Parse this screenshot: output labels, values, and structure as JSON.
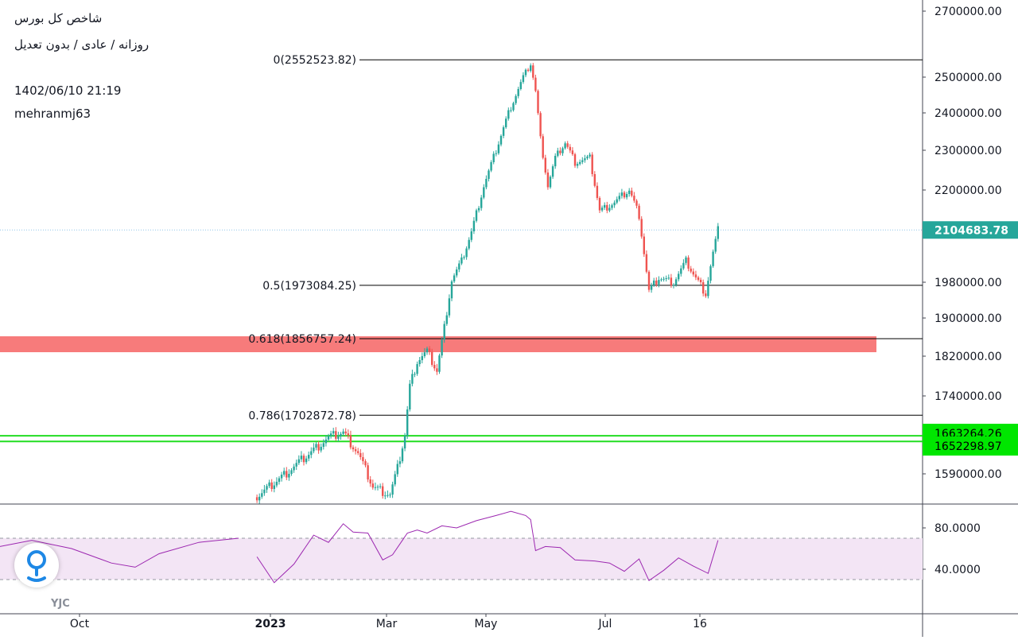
{
  "header": {
    "title": "شاخص کل بورس",
    "subtitle": "روزانه / عادی / بدون تعدیل",
    "datetime": "1402/06/10 21:19",
    "author": "mehranmj63"
  },
  "watermark": {
    "text": "YJC"
  },
  "colors": {
    "up": "#26a69a",
    "down": "#ef5350",
    "rsi_line": "#9c27b0",
    "rsi_band": "#f3e5f5",
    "resistance_zone": "#f77b7b",
    "support_lines": "#22dd22",
    "last_price_tag": "#26a69a",
    "support_tag": "#00e600"
  },
  "chart_data": [
    {
      "type": "candlestick",
      "title": "",
      "x_labels": [
        "Oct",
        "2023",
        "Mar",
        "May",
        "Jul",
        "16"
      ],
      "y_ticks": [
        "2700000.00",
        "2500000.00",
        "2400000.00",
        "2300000.00",
        "2200000.00",
        "1980000.00",
        "1900000.00",
        "1820000.00",
        "1740000.00",
        "1590000.00"
      ],
      "last_price": "2104683.78",
      "fibonacci": [
        {
          "label": "0(2552523.82)",
          "value": 2552523.82
        },
        {
          "label": "0.5(1973084.25)",
          "value": 1973084.25
        },
        {
          "label": "0.618(1856757.24)",
          "value": 1856757.24
        },
        {
          "label": "0.786(1702872.78)",
          "value": 1702872.78
        }
      ],
      "resistance_zone": [
        1830000,
        1856757.24
      ],
      "support_levels": [
        {
          "label": "1663264.26",
          "value": 1663264.26
        },
        {
          "label": "1652298.97",
          "value": 1652298.97
        }
      ],
      "approx_close_path": [
        [
          1,
          1545000
        ],
        [
          10,
          1580000
        ],
        [
          20,
          1620000
        ],
        [
          30,
          1660000
        ],
        [
          36,
          1670000
        ],
        [
          42,
          1630000
        ],
        [
          48,
          1565000
        ],
        [
          55,
          1550000
        ],
        [
          58,
          1600000
        ],
        [
          61,
          1665000
        ],
        [
          63,
          1760000
        ],
        [
          66,
          1810000
        ],
        [
          70,
          1830000
        ],
        [
          74,
          1790000
        ],
        [
          77,
          1880000
        ],
        [
          80,
          1985000
        ],
        [
          84,
          2030000
        ],
        [
          88,
          2100000
        ],
        [
          93,
          2210000
        ],
        [
          98,
          2300000
        ],
        [
          103,
          2400000
        ],
        [
          109,
          2500000
        ],
        [
          112,
          2540000
        ],
        [
          114,
          2460000
        ],
        [
          116,
          2330000
        ],
        [
          119,
          2210000
        ],
        [
          122,
          2280000
        ],
        [
          126,
          2320000
        ],
        [
          130,
          2270000
        ],
        [
          136,
          2280000
        ],
        [
          140,
          2150000
        ],
        [
          146,
          2170000
        ],
        [
          152,
          2200000
        ],
        [
          156,
          2140000
        ],
        [
          160,
          1960000
        ],
        [
          164,
          1990000
        ],
        [
          170,
          1980000
        ],
        [
          175,
          2030000
        ],
        [
          179,
          1990000
        ],
        [
          183,
          1955000
        ],
        [
          186,
          2050000
        ],
        [
          188,
          2104683.78
        ]
      ]
    },
    {
      "type": "line",
      "title": "",
      "y_ticks": [
        "80.0000",
        "40.0000"
      ],
      "band": [
        30,
        70
      ],
      "series": [
        {
          "x": [
            1,
            8,
            16,
            24,
            30,
            36,
            40,
            46,
            52,
            56,
            62,
            66,
            70,
            76,
            82,
            90,
            98,
            104,
            110,
            112,
            114,
            118,
            124,
            130,
            138,
            144,
            150,
            156,
            160,
            166,
            172,
            178,
            184,
            188
          ],
          "values": [
            55,
            28,
            44,
            70,
            68,
            84,
            74,
            78,
            50,
            53,
            72,
            80,
            75,
            80,
            83,
            88,
            91,
            93,
            94,
            88,
            56,
            65,
            62,
            48,
            45,
            48,
            38,
            48,
            32,
            40,
            50,
            40,
            38,
            68
          ]
        }
      ]
    }
  ]
}
